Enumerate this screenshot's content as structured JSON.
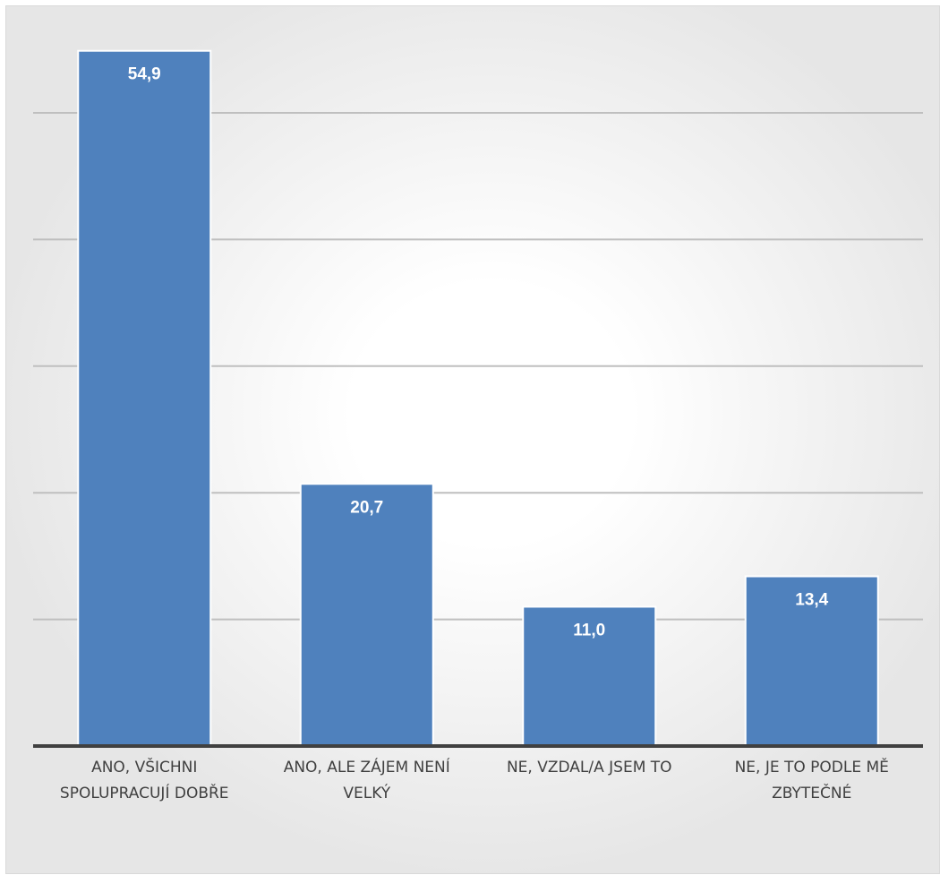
{
  "chart_data": {
    "type": "bar",
    "categories": [
      [
        "ANO, VŠICHNI",
        "SPOLUPRACUJÍ DOBŘE"
      ],
      [
        "ANO, ALE ZÁJEM NENÍ",
        "VELKÝ"
      ],
      [
        "NE, VZDAL/A JSEM TO"
      ],
      [
        "NE, JE TO PODLE MĚ",
        "ZBYTEČNÉ"
      ]
    ],
    "values": [
      54.9,
      20.7,
      11.0,
      13.4
    ],
    "data_labels": [
      "54,9",
      "20,7",
      "11,0",
      "13,4"
    ],
    "ylim": [
      0,
      60
    ],
    "gridlines": [
      10,
      20,
      30,
      40,
      50,
      60
    ],
    "grid": true,
    "colors": {
      "bar": "#4f81bd",
      "grid": "#bfbfbf",
      "axis": "#404040",
      "label": "#ffffff"
    }
  }
}
